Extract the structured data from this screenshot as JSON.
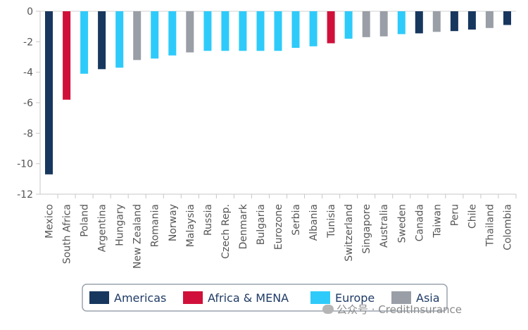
{
  "chart_data": {
    "type": "bar",
    "title": "",
    "xlabel": "",
    "ylabel": "",
    "ylim": [
      -12,
      0
    ],
    "yticks": [
      0,
      -2,
      -4,
      -6,
      -8,
      -10,
      -12
    ],
    "grid": false,
    "legend_position": "bottom",
    "groups": [
      {
        "name": "Americas",
        "color": "#17375e"
      },
      {
        "name": "Africa & MENA",
        "color": "#d0103a"
      },
      {
        "name": "Europe",
        "color": "#2ecbfa"
      },
      {
        "name": "Asia",
        "color": "#9a9ea6"
      }
    ],
    "categories": [
      "Mexico",
      "South Africa",
      "Poland",
      "Argentina",
      "Hungary",
      "New Zealand",
      "Romania",
      "Norway",
      "Malaysia",
      "Russia",
      "Czech Rep.",
      "Denmark",
      "Bulgaria",
      "Eurozone",
      "Serbia",
      "Albania",
      "Tunisia",
      "Switzerland",
      "Singapore",
      "Australia",
      "Sweden",
      "Canada",
      "Taiwan",
      "Peru",
      "Chile",
      "Thailand",
      "Colombia"
    ],
    "category_groups": [
      "Americas",
      "Africa & MENA",
      "Europe",
      "Americas",
      "Europe",
      "Asia",
      "Europe",
      "Europe",
      "Asia",
      "Europe",
      "Europe",
      "Europe",
      "Europe",
      "Europe",
      "Europe",
      "Europe",
      "Africa & MENA",
      "Europe",
      "Asia",
      "Asia",
      "Europe",
      "Americas",
      "Asia",
      "Americas",
      "Americas",
      "Asia",
      "Americas"
    ],
    "values": [
      -10.7,
      -5.8,
      -4.1,
      -3.8,
      -3.7,
      -3.2,
      -3.1,
      -2.9,
      -2.7,
      -2.6,
      -2.6,
      -2.6,
      -2.6,
      -2.6,
      -2.4,
      -2.3,
      -2.1,
      -1.8,
      -1.7,
      -1.65,
      -1.5,
      -1.45,
      -1.35,
      -1.3,
      -1.2,
      -1.1,
      -0.9
    ]
  },
  "watermark": {
    "icon": "wechat-icon",
    "text": "公众号 · CreditInsurance"
  }
}
